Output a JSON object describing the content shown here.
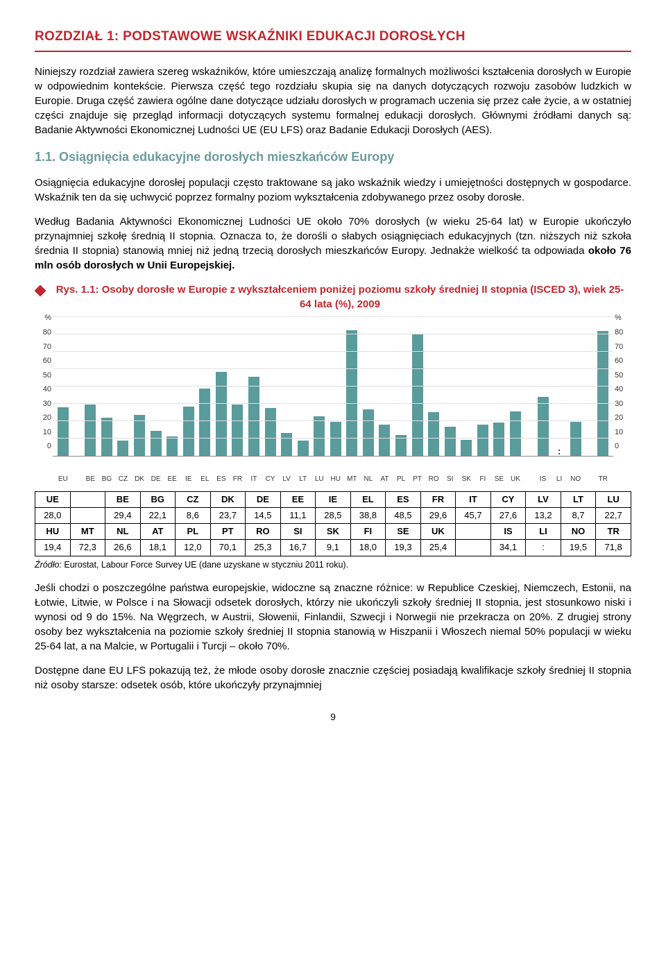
{
  "chapter": {
    "title": "ROZDZIAŁ 1: PODSTAWOWE WSKAŹNIKI EDUKACJI DOROSŁYCH"
  },
  "intro": {
    "p1": "Niniejszy rozdział zawiera szereg wskaźników, które umieszczają analizę formalnych możliwości kształcenia dorosłych w Europie w odpowiednim kontekście. Pierwsza część tego rozdziału skupia się na danych dotyczących rozwoju zasobów ludzkich w Europie. Druga część zawiera ogólne dane dotyczące udziału dorosłych w programach uczenia się przez całe życie, a w ostatniej części znajduje się przegląd informacji dotyczących systemu formalnej edukacji dorosłych. Głównymi źródłami danych są: Badanie Aktywności Ekonomicznej Ludności UE (EU LFS) oraz Badanie Edukacji Dorosłych (AES)."
  },
  "section11": {
    "title": "1.1. Osiągnięcia edukacyjne dorosłych mieszkańców Europy",
    "p1": "Osiągnięcia edukacyjne dorosłej populacji często traktowane są jako wskaźnik wiedzy i umiejętności dostępnych w gospodarce. Wskaźnik ten da się uchwycić poprzez formalny poziom wykształcenia zdobywanego przez osoby dorosłe.",
    "p2_a": "Według Badania Aktywności Ekonomicznej Ludności UE około 70% dorosłych (w wieku 25-64 lat) w Europie ukończyło przynajmniej szkołę średnią II stopnia. Oznacza to, że dorośli o słabych osiągnięciach edukacyjnych (tzn. niższych niż szkoła średnia II stopnia) stanowią mniej niż jedną trzecią dorosłych mieszkańców Europy. Jednakże wielkość ta odpowiada ",
    "p2_bold": "około 76 mln osób dorosłych w Unii Europejskiej."
  },
  "figure": {
    "title": "Rys. 1.1: Osoby dorosłe w Europie z wykształceniem poniżej poziomu szkoły średniej II stopnia (ISCED 3), wiek 25-64 lata (%), 2009",
    "y_unit_left": "%",
    "y_unit_right": "%",
    "ymax": 80,
    "ytick_step": 10,
    "yticks": [
      "80",
      "70",
      "60",
      "50",
      "40",
      "30",
      "20",
      "10",
      "0"
    ],
    "bar_color": "#5a9b9b",
    "grid_color": "#e0e0e0",
    "groups": [
      {
        "codes": [
          "EU"
        ],
        "values": [
          28.0
        ]
      },
      {
        "codes": [
          "BE",
          "BG",
          "CZ",
          "DK",
          "DE",
          "EE",
          "IE",
          "EL",
          "ES",
          "FR",
          "IT",
          "CY",
          "LV",
          "LT",
          "LU",
          "HU",
          "MT",
          "NL",
          "AT",
          "PL",
          "PT",
          "RO",
          "SI",
          "SK",
          "FI",
          "SE",
          "UK"
        ],
        "values": [
          29.4,
          22.1,
          8.6,
          23.7,
          14.5,
          11.1,
          28.5,
          38.8,
          48.5,
          29.6,
          45.7,
          27.6,
          13.2,
          8.7,
          22.7,
          19.4,
          72.3,
          26.6,
          18.1,
          12.0,
          70.1,
          25.3,
          16.7,
          9.1,
          18.0,
          19.3,
          25.4
        ]
      },
      {
        "codes": [
          "IS",
          "LI",
          "NO"
        ],
        "values": [
          34.1,
          null,
          19.5
        ]
      },
      {
        "codes": [
          "TR"
        ],
        "values": [
          71.8
        ]
      }
    ]
  },
  "datatable": {
    "row1_headers": [
      "UE",
      "",
      "BE",
      "BG",
      "CZ",
      "DK",
      "DE",
      "EE",
      "IE",
      "EL",
      "ES",
      "FR",
      "IT",
      "CY",
      "LV",
      "LT",
      "LU"
    ],
    "row1_values": [
      "28,0",
      "",
      "29,4",
      "22,1",
      "8,6",
      "23,7",
      "14,5",
      "11,1",
      "28,5",
      "38,8",
      "48,5",
      "29,6",
      "45,7",
      "27,6",
      "13,2",
      "8,7",
      "22,7"
    ],
    "row2_headers": [
      "HU",
      "MT",
      "NL",
      "AT",
      "PL",
      "PT",
      "RO",
      "SI",
      "SK",
      "FI",
      "SE",
      "UK",
      "",
      "IS",
      "LI",
      "NO",
      "TR"
    ],
    "row2_values": [
      "19,4",
      "72,3",
      "26,6",
      "18,1",
      "12,0",
      "70,1",
      "25,3",
      "16,7",
      "9,1",
      "18,0",
      "19,3",
      "25,4",
      "",
      "34,1",
      ":",
      "19,5",
      "71,8"
    ]
  },
  "source": {
    "label": "Źródło:",
    "text": " Eurostat, Labour Force Survey UE (dane uzyskane w styczniu 2011 roku)."
  },
  "after": {
    "p1": "Jeśli chodzi o poszczególne państwa europejskie, widoczne są znaczne różnice: w Republice Czeskiej, Niemczech, Estonii, na Łotwie, Litwie, w Polsce i na Słowacji odsetek dorosłych, którzy nie ukończyli szkoły średniej II stopnia, jest stosunkowo niski i wynosi od 9 do 15%. Na Węgrzech, w Austrii, Słowenii, Finlandii, Szwecji i Norwegii nie przekracza on 20%. Z drugiej strony osoby bez wykształcenia na poziomie szkoły średniej II stopnia stanowią w Hiszpanii i Włoszech niemal 50% populacji w wieku 25-64 lat, a na Malcie, w Portugalii i Turcji – około 70%.",
    "p2": "Dostępne dane EU LFS pokazują też, że młode osoby dorosłe znacznie częściej posiadają kwalifikacje szkoły średniej II stopnia niż osoby starsze: odsetek osób, które ukończyły przynajmniej"
  },
  "page": "9"
}
